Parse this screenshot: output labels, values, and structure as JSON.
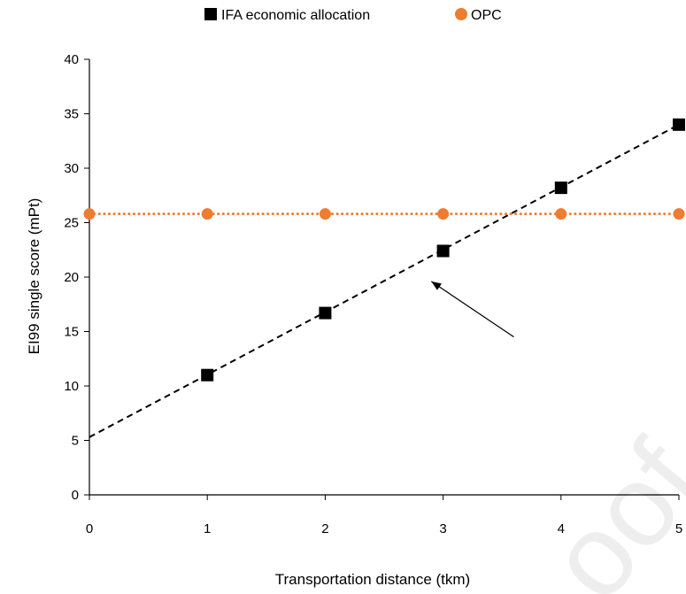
{
  "chart_data": {
    "type": "scatter",
    "xlabel": "Transportation distance (tkm)",
    "ylabel": "EI99 single score (mPt)",
    "xlim": [
      0,
      5
    ],
    "ylim": [
      0,
      40
    ],
    "x_ticks": [
      0,
      1,
      2,
      3,
      4,
      5
    ],
    "y_ticks": [
      0,
      5,
      10,
      15,
      20,
      25,
      30,
      35,
      40
    ],
    "grid": false,
    "legend_position": "top-center",
    "series": [
      {
        "name": "IFA economic allocation",
        "marker": "square",
        "color": "#000000",
        "x": [
          1,
          2,
          3,
          4,
          5
        ],
        "y": [
          11.0,
          16.7,
          22.4,
          28.2,
          34.0
        ],
        "trendline": {
          "style": "dashed",
          "x": [
            0,
            5
          ],
          "y": [
            5.3,
            34.0
          ]
        }
      },
      {
        "name": "OPC",
        "marker": "circle",
        "color": "#ED7D31",
        "x": [
          0,
          1,
          2,
          3,
          4,
          5
        ],
        "y": [
          25.8,
          25.8,
          25.8,
          25.8,
          25.8,
          25.8
        ],
        "trendline": {
          "style": "dotted",
          "x": [
            0,
            5
          ],
          "y": [
            25.8,
            25.8
          ]
        }
      }
    ],
    "annotations": [
      {
        "type": "arrow",
        "from": [
          3.6,
          14.5
        ],
        "to": [
          2.9,
          19.6
        ]
      }
    ]
  },
  "watermark": {
    "text": "oof"
  }
}
